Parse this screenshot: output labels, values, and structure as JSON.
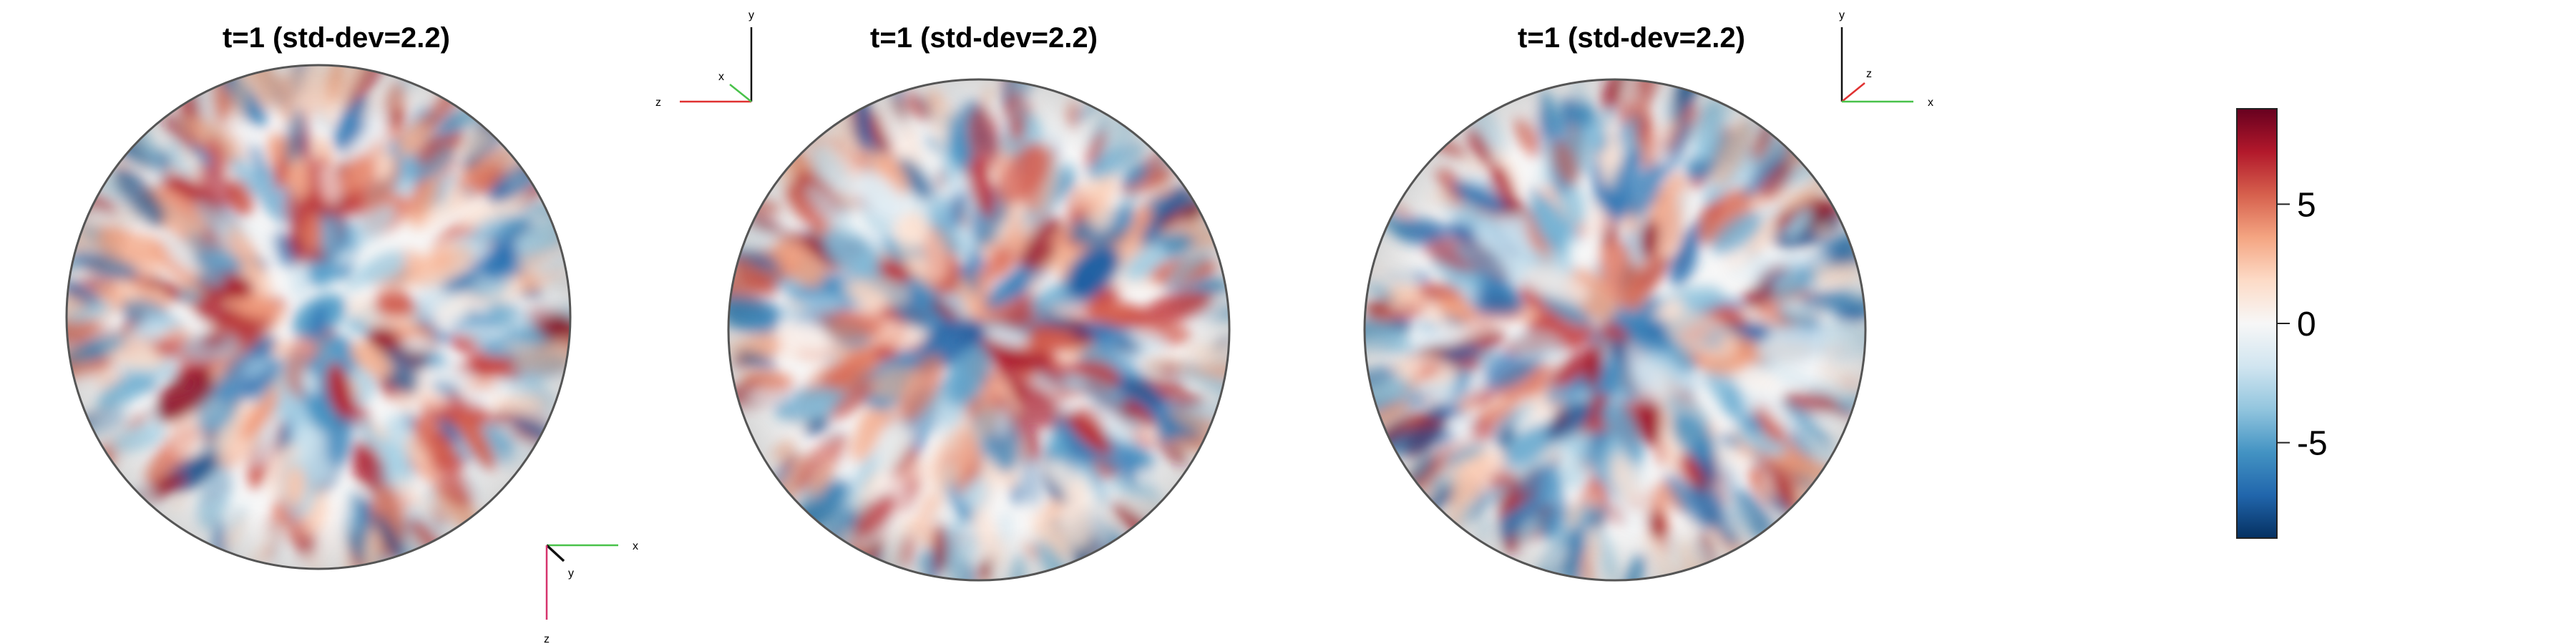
{
  "chart_data": {
    "type": "heatmap",
    "description_kind": "three orthographic views of a random field on a sphere with shared diverging colorbar",
    "panels": [
      {
        "title": "t=1  (std-dev=2.2)",
        "view": "bottom (looking along -z)",
        "triad": {
          "position": "bottom-right",
          "axes": [
            {
              "label": "x",
              "color": "#49c24a"
            },
            {
              "label": "y",
              "color": "#111111"
            },
            {
              "label": "z",
              "color": "#d6336c"
            }
          ]
        }
      },
      {
        "title": "t=1  (std-dev=2.2)",
        "view": "side (looking along x)",
        "triad": {
          "position": "top-left",
          "axes": [
            {
              "label": "y",
              "color": "#111111"
            },
            {
              "label": "z",
              "color": "#e03131"
            },
            {
              "label": "x",
              "color": "#49c24a"
            }
          ]
        }
      },
      {
        "title": "t=1  (std-dev=2.2)",
        "view": "front (looking along z)",
        "triad": {
          "position": "top-left",
          "axes": [
            {
              "label": "y",
              "color": "#111111"
            },
            {
              "label": "z",
              "color": "#e03131"
            },
            {
              "label": "x",
              "color": "#49c24a"
            }
          ]
        }
      }
    ],
    "colorbar": {
      "range": [
        -9,
        9
      ],
      "ticks": [
        5,
        0,
        -5
      ],
      "tick_labels": [
        "5",
        "0",
        "-5"
      ],
      "colormap": "RdBu_r",
      "stops": [
        "#053061",
        "#2166ac",
        "#4393c3",
        "#92c5de",
        "#d1e5f0",
        "#f7f7f7",
        "#fddbc7",
        "#f4a582",
        "#d6604d",
        "#b2182b",
        "#67001f"
      ]
    }
  }
}
